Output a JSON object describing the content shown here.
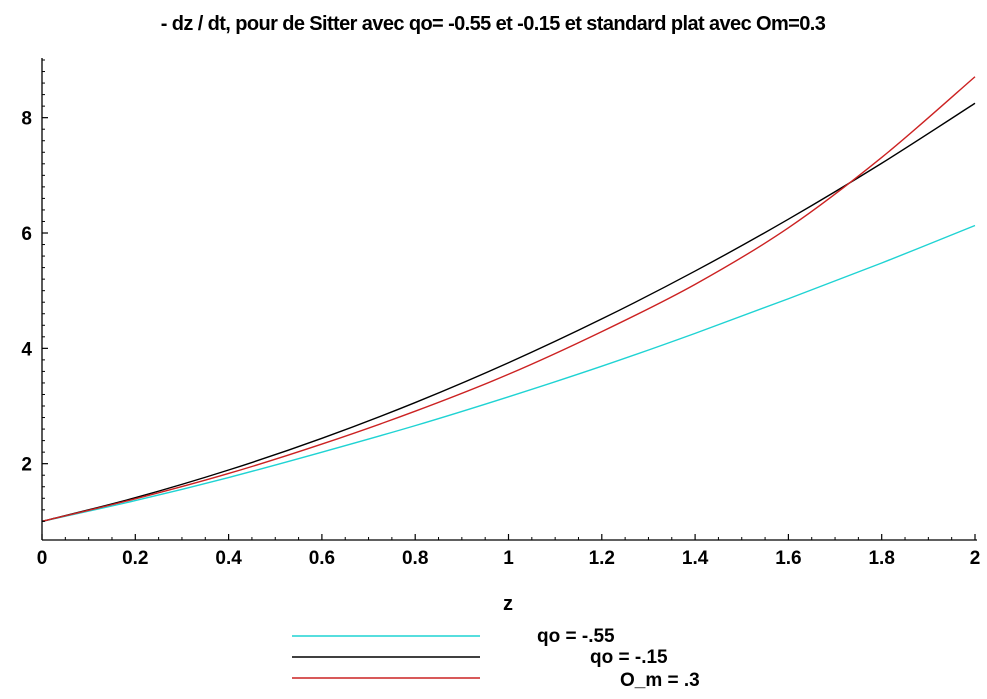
{
  "chart_data": {
    "type": "line",
    "title": "- dz / dt, pour de Sitter avec qo= -0.55 et -0.15 et standard plat avec Om=0.3",
    "xlabel": "z",
    "ylabel": "",
    "xlim": [
      0,
      2
    ],
    "ylim": [
      0.85,
      9.0
    ],
    "x_ticks": [
      0,
      0.2,
      0.4,
      0.6,
      0.8,
      1,
      1.2,
      1.4,
      1.6,
      1.8,
      2
    ],
    "x_tick_labels": [
      "0",
      "0.2",
      "0.4",
      "0.6",
      "0.8",
      "1",
      "1.2",
      "1.4",
      "1.6",
      "1.8",
      "2"
    ],
    "y_ticks": [
      2,
      4,
      6,
      8
    ],
    "y_tick_labels": [
      "2",
      "4",
      "6",
      "8"
    ],
    "x": [
      0,
      0.2,
      0.4,
      0.6,
      0.8,
      1.0,
      1.2,
      1.4,
      1.6,
      1.8,
      2.0
    ],
    "series": [
      {
        "name": "qo = -.55",
        "color": "#1fd3d3",
        "values": [
          1.0,
          1.36,
          1.76,
          2.2,
          2.66,
          3.16,
          3.69,
          4.26,
          4.86,
          5.48,
          6.13
        ]
      },
      {
        "name": "qo = -.15",
        "color": "#000000",
        "values": [
          1.0,
          1.41,
          1.89,
          2.44,
          3.06,
          3.75,
          4.51,
          5.34,
          6.24,
          7.21,
          8.25
        ]
      },
      {
        "name": "O_m = .3",
        "color": "#cc2222",
        "values": [
          1.0,
          1.39,
          1.83,
          2.34,
          2.91,
          3.55,
          4.29,
          5.11,
          6.09,
          7.31,
          8.71
        ]
      }
    ],
    "legend_position": "bottom",
    "grid": false
  }
}
